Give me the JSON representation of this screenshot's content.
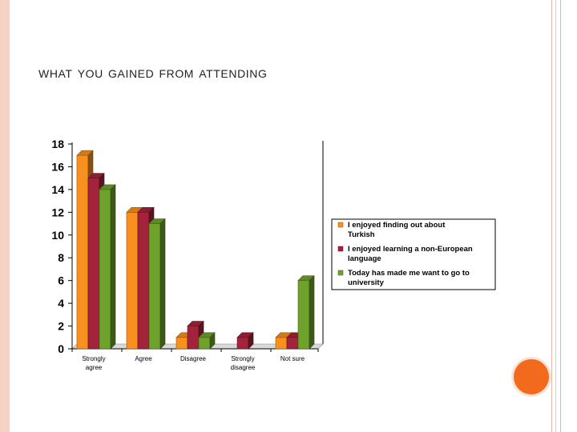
{
  "slide": {
    "title": "WHAT YOU GAINED FROM ATTENDING"
  },
  "colors": {
    "series1": "#f7901e",
    "series2": "#a3233a",
    "series3": "#6fa22c",
    "accent_dot": "#f26a1b",
    "border": "#f6d2c2"
  },
  "chart_data": {
    "type": "bar",
    "title": "",
    "xlabel": "",
    "ylabel": "",
    "ylim": [
      0,
      18
    ],
    "yticks": [
      0,
      2,
      4,
      6,
      8,
      10,
      12,
      14,
      16,
      18
    ],
    "grid": false,
    "legend_position": "right",
    "categories": [
      [
        "Strongly",
        "agree"
      ],
      [
        "Agree"
      ],
      [
        "Disagree"
      ],
      [
        "Strongly",
        "disagree"
      ],
      [
        "Not sure"
      ]
    ],
    "series": [
      {
        "name": "I enjoyed finding out about Turkish",
        "legend_lines": [
          "I enjoyed finding out about",
          "Turkish"
        ],
        "values": [
          17,
          12,
          1,
          0,
          1
        ]
      },
      {
        "name": "I enjoyed learning a non-European language",
        "legend_lines": [
          "I enjoyed learning a non-European",
          "language"
        ],
        "values": [
          15,
          12,
          2,
          1,
          1
        ]
      },
      {
        "name": "Today has made me want to go to university",
        "legend_lines": [
          "Today has made me want to go to",
          "university"
        ],
        "values": [
          14,
          11,
          1,
          0,
          6
        ]
      }
    ]
  }
}
